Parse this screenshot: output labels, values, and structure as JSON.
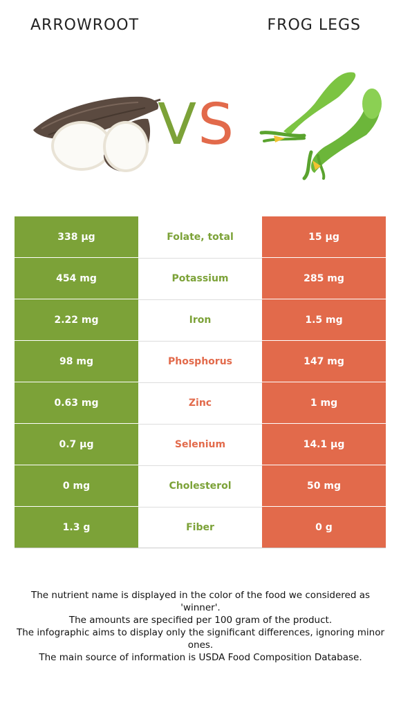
{
  "colors": {
    "left_accent": "#7ca238",
    "right_accent": "#e26a4b"
  },
  "header": {
    "left_title": "ARROWROOT",
    "right_title": "FROG LEGS",
    "vs_v": "V",
    "vs_s": "S"
  },
  "images": {
    "left_icon": "arrowroot-illustration",
    "right_icon": "frog-legs-illustration"
  },
  "rows": [
    {
      "nutrient": "Folate, total",
      "left": "338 µg",
      "right": "15 µg",
      "winner": "left"
    },
    {
      "nutrient": "Potassium",
      "left": "454 mg",
      "right": "285 mg",
      "winner": "left"
    },
    {
      "nutrient": "Iron",
      "left": "2.22 mg",
      "right": "1.5 mg",
      "winner": "left"
    },
    {
      "nutrient": "Phosphorus",
      "left": "98 mg",
      "right": "147 mg",
      "winner": "right"
    },
    {
      "nutrient": "Zinc",
      "left": "0.63 mg",
      "right": "1 mg",
      "winner": "right"
    },
    {
      "nutrient": "Selenium",
      "left": "0.7 µg",
      "right": "14.1 µg",
      "winner": "right"
    },
    {
      "nutrient": "Cholesterol",
      "left": "0 mg",
      "right": "50 mg",
      "winner": "left"
    },
    {
      "nutrient": "Fiber",
      "left": "1.3 g",
      "right": "0 g",
      "winner": "left"
    }
  ],
  "notes": [
    "The nutrient name is displayed in the color of the food we considered as 'winner'.",
    "The amounts are specified per 100 gram of the product.",
    "The infographic aims to display only the significant differences, ignoring minor ones.",
    "The main source of information is USDA Food Composition Database."
  ]
}
